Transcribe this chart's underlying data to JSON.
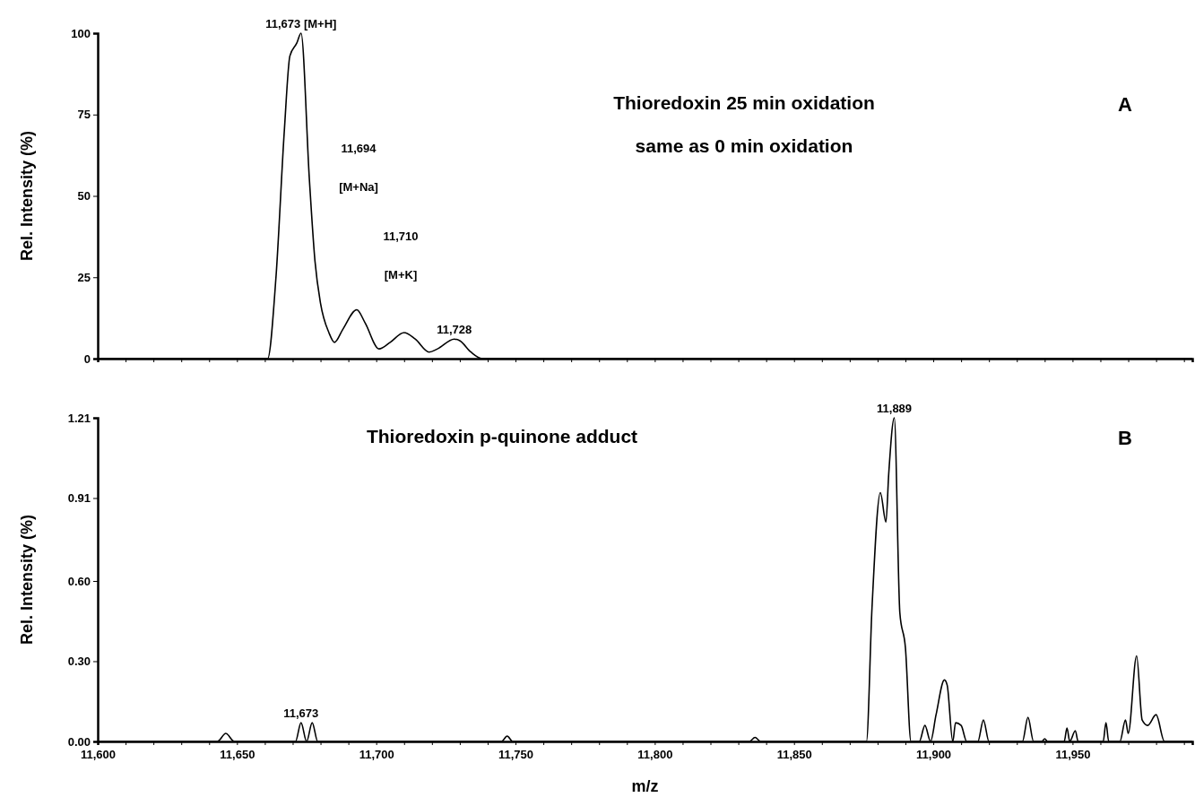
{
  "chart_data": [
    {
      "type": "line",
      "title": "Thioredoxin 25 min oxidation",
      "subtitle": "same as 0 min oxidation",
      "ylabel": "Rel. Intensity (%)",
      "x": [
        11600,
        11661,
        11664,
        11667,
        11669,
        11671.5,
        11673,
        11676,
        11678,
        11680,
        11683,
        11685,
        11688,
        11693,
        11696,
        11701,
        11705,
        11710,
        11714,
        11719,
        11722,
        11728,
        11730,
        11734,
        11738,
        11993
      ],
      "series": [
        {
          "color": "#000000",
          "values": [
            0,
            0,
            25,
            70,
            93,
            97,
            100,
            55,
            30,
            17,
            8,
            5,
            9,
            15,
            11,
            3,
            5,
            8,
            6,
            2,
            3,
            6,
            5.5,
            2,
            0,
            0
          ]
        }
      ],
      "xlim": [
        11600,
        11993
      ],
      "ylim": [
        0,
        100
      ],
      "yticks": [
        0,
        25,
        50,
        75,
        100
      ],
      "xticks": [
        11600,
        11610,
        11620,
        11630,
        11640,
        11650,
        11660,
        11670,
        11680,
        11690,
        11700,
        11710,
        11720,
        11730,
        11740,
        11750,
        11760,
        11770,
        11780,
        11790,
        11800,
        11810,
        11820,
        11830,
        11840,
        11850,
        11860,
        11870,
        11880,
        11890,
        11900,
        11910,
        11920,
        11930,
        11940,
        11950,
        11960,
        11970,
        11980,
        11990
      ],
      "tick_labels": "y",
      "grid": false,
      "marker": "none",
      "line_style": "solid",
      "annotations": [
        {
          "text": "11,673 [M+H]",
          "x": 11673,
          "y": 100
        },
        "11,694",
        "[M+Na]",
        "11,710",
        "[M+K]",
        {
          "text": "11,728",
          "x": 11728,
          "y": 6
        },
        "A"
      ]
    },
    {
      "type": "line",
      "title": "Thioredoxin p-quinone adduct",
      "xlabel": "m/z",
      "ylabel": "Rel. Intensity (%)",
      "x": [
        11600,
        11643,
        11646,
        11649,
        11671,
        11673,
        11675,
        11677,
        11679,
        11745,
        11747,
        11749,
        11834,
        11836,
        11838,
        11876,
        11878,
        11881,
        11883,
        11884,
        11886,
        11888,
        11890,
        11892,
        11895,
        11897,
        11899,
        11901,
        11904,
        11905,
        11907,
        11908,
        11910,
        11912,
        11916,
        11918,
        11920,
        11932,
        11934,
        11936,
        11939,
        11940,
        11941,
        11947,
        11948,
        11949,
        11951,
        11952,
        11961,
        11962,
        11963,
        11967,
        11969,
        11970,
        11973,
        11975,
        11977,
        11980,
        11983,
        11993
      ],
      "series": [
        {
          "color": "#000000",
          "values": [
            0,
            0,
            0.03,
            0,
            0,
            0.07,
            0,
            0.07,
            0,
            0,
            0.02,
            0,
            0,
            0.015,
            0,
            0,
            0.5,
            0.93,
            0.82,
            1.0,
            1.21,
            0.48,
            0.35,
            0,
            0,
            0.06,
            0,
            0.1,
            0.23,
            0.21,
            0,
            0.07,
            0.06,
            0,
            0,
            0.08,
            0,
            0,
            0.09,
            0,
            0,
            0.01,
            0,
            0,
            0.05,
            0,
            0.04,
            0,
            0,
            0.07,
            0,
            0,
            0.08,
            0.03,
            0.32,
            0.08,
            0.06,
            0.1,
            0,
            0
          ]
        }
      ],
      "xlim": [
        11600,
        11993
      ],
      "ylim": [
        0,
        1.21
      ],
      "yticks": [
        {
          "value": 0,
          "label": "0.00"
        },
        {
          "value": 0.3,
          "label": "0.30"
        },
        {
          "value": 0.6,
          "label": "0.60"
        },
        0.91,
        1.21
      ],
      "xticks": [
        {
          "value": 11600,
          "label": "11,600"
        },
        {
          "value": 11610,
          "label": null
        },
        {
          "value": 11620,
          "label": null
        },
        {
          "value": 11630,
          "label": null
        },
        {
          "value": 11640,
          "label": null
        },
        {
          "value": 11650,
          "label": "11,650"
        },
        {
          "value": 11660,
          "label": null
        },
        {
          "value": 11670,
          "label": null
        },
        {
          "value": 11680,
          "label": null
        },
        {
          "value": 11690,
          "label": null
        },
        {
          "value": 11700,
          "label": "11,700"
        },
        {
          "value": 11710,
          "label": null
        },
        {
          "value": 11720,
          "label": null
        },
        {
          "value": 11730,
          "label": null
        },
        {
          "value": 11740,
          "label": null
        },
        {
          "value": 11750,
          "label": "11,750"
        },
        {
          "value": 11760,
          "label": null
        },
        {
          "value": 11770,
          "label": null
        },
        {
          "value": 11780,
          "label": null
        },
        {
          "value": 11790,
          "label": null
        },
        {
          "value": 11800,
          "label": "11,800"
        },
        {
          "value": 11810,
          "label": null
        },
        {
          "value": 11820,
          "label": null
        },
        {
          "value": 11830,
          "label": null
        },
        {
          "value": 11840,
          "label": null
        },
        {
          "value": 11850,
          "label": "11,850"
        },
        {
          "value": 11860,
          "label": null
        },
        {
          "value": 11870,
          "label": null
        },
        {
          "value": 11880,
          "label": null
        },
        {
          "value": 11890,
          "label": null
        },
        {
          "value": 11900,
          "label": "11,900"
        },
        {
          "value": 11910,
          "label": null
        },
        {
          "value": 11920,
          "label": null
        },
        {
          "value": 11930,
          "label": null
        },
        {
          "value": 11940,
          "label": null
        },
        {
          "value": 11950,
          "label": "11,950"
        },
        {
          "value": 11960,
          "label": null
        },
        {
          "value": 11970,
          "label": null
        },
        {
          "value": 11980,
          "label": null
        },
        {
          "value": 11990,
          "label": null
        }
      ],
      "grid": false,
      "marker": "none",
      "line_style": "solid",
      "annotations": [
        {
          "text": "11,673",
          "x": 11673,
          "y": 0.07
        },
        {
          "text": "11,889",
          "x": 11886,
          "y": 1.21
        },
        "B"
      ]
    }
  ]
}
